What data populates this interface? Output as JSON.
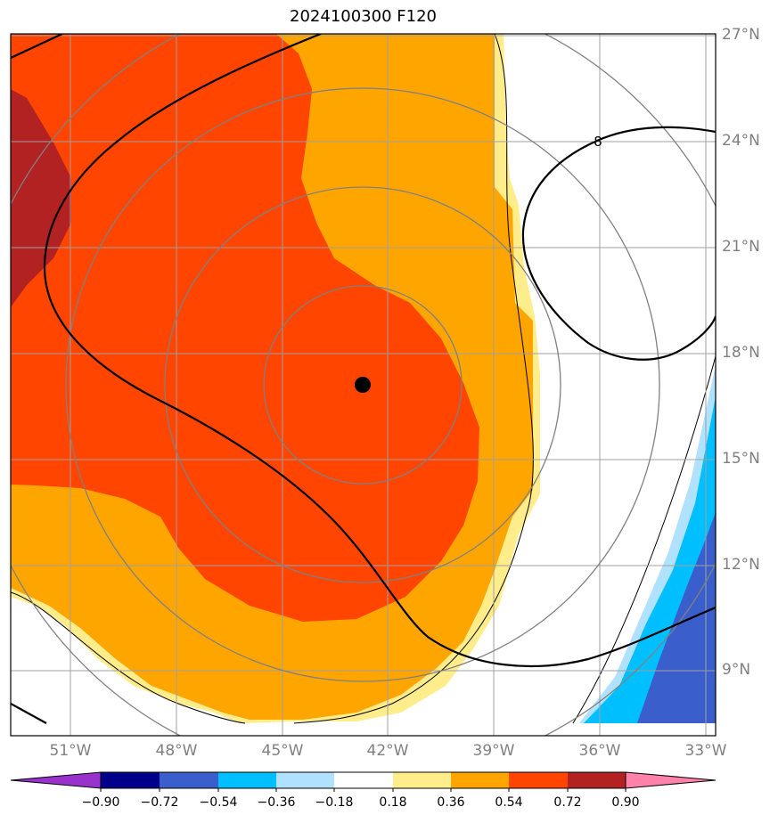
{
  "title": "2024100300 F120",
  "map": {
    "lat_labels": [
      "27°N",
      "24°N",
      "21°N",
      "18°N",
      "15°N",
      "12°N",
      "9°N"
    ],
    "lon_labels": [
      "51°W",
      "48°W",
      "45°W",
      "42°W",
      "39°W",
      "36°W",
      "33°W"
    ],
    "contour_label": "8",
    "storm_center": {
      "lon": "42.8°W",
      "lat": "17.1°N"
    }
  },
  "colorbar": {
    "ticks": [
      "−0.90",
      "−0.72",
      "−0.54",
      "−0.36",
      "−0.18",
      "0.18",
      "0.36",
      "0.54",
      "0.72",
      "0.90"
    ],
    "colors": [
      "#9932cc",
      "#00008b",
      "#3a5fcd",
      "#00bfff",
      "#b0e2ff",
      "#ffffff",
      "#ffec8b",
      "#ffa500",
      "#ff4500",
      "#b22222",
      "#ff82ab"
    ]
  },
  "palette": {
    "orange": "#ffa500",
    "orange_red": "#ff4500",
    "firebrick": "#b22222",
    "light_yellow": "#ffec8b",
    "deep_sky_blue": "#00bfff",
    "light_sky_blue": "#b0e2ff",
    "royal_blue": "#3a5fcd",
    "grid_gray": "#a0a0a0",
    "ring_gray": "#808080"
  }
}
